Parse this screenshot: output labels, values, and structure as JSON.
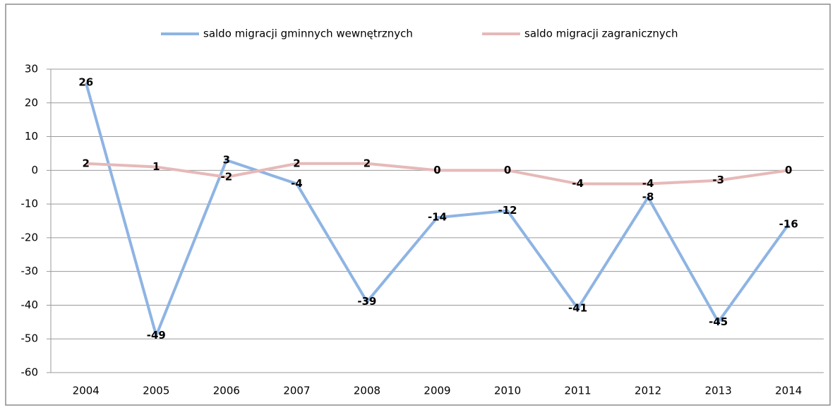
{
  "chart_data": {
    "type": "line",
    "categories": [
      "2004",
      "2005",
      "2006",
      "2007",
      "2008",
      "2009",
      "2010",
      "2011",
      "2012",
      "2013",
      "2014"
    ],
    "series": [
      {
        "name": "saldo migracji gminnych wewnętrznych",
        "color": "#8eb4e3",
        "values": [
          26,
          -49,
          3,
          -4,
          -39,
          -14,
          -12,
          -41,
          -8,
          -45,
          -16
        ]
      },
      {
        "name": "saldo migracji zagranicznych",
        "color": "#e6b9b8",
        "values": [
          2,
          1,
          -2,
          2,
          2,
          0,
          0,
          -4,
          -4,
          -3,
          0
        ]
      }
    ],
    "ylim": [
      -60,
      30
    ],
    "yticks": [
      -60,
      -50,
      -40,
      -30,
      -20,
      -10,
      0,
      10,
      20,
      30
    ],
    "grid": true,
    "legend": "top"
  }
}
